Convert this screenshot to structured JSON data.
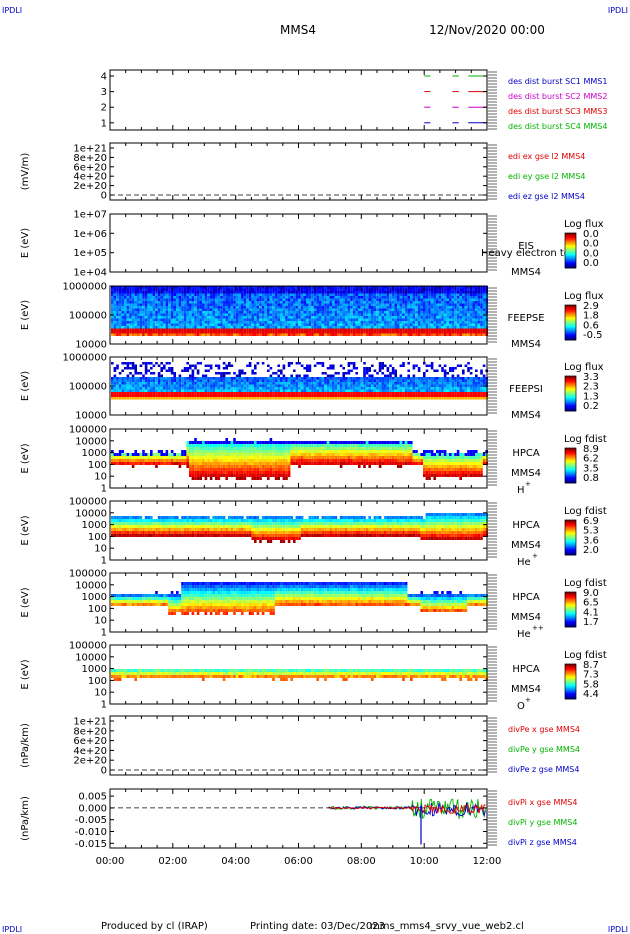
{
  "header": {
    "corner_left": "IPDLI",
    "corner_right": "IPDLI",
    "spacecraft": "MMS4",
    "date": "12/Nov/2020 00:00"
  },
  "footer": {
    "produced_by": "Produced by cl (IRAP)",
    "printing_date": "Printing date: 03/Dec/2023",
    "script_name": "mms_mms4_srvy_vue_web2.cl"
  },
  "colors": {
    "mms1": "#0000c8",
    "mms2": "#c800c8",
    "mms3": "#e00000",
    "mms4": "#00b400",
    "x_component": "#e00000",
    "y_component": "#00b400",
    "z_component": "#0000c8"
  },
  "chart_data": [
    {
      "id": "burst",
      "type": "line",
      "ylabel": "",
      "yticks": [
        "4",
        "3",
        "2",
        "1"
      ],
      "ylim": [
        0.5,
        4.5
      ],
      "legend": [
        {
          "text": "des dist burst SC1 MMS1",
          "color": "#0000c8"
        },
        {
          "text": "des dist burst SC2 MMS2",
          "color": "#c800c8"
        },
        {
          "text": "des dist burst SC3 MMS3",
          "color": "#e00000"
        },
        {
          "text": "des dist burst SC4 MMS4",
          "color": "#00b400"
        }
      ]
    },
    {
      "id": "edi",
      "type": "line",
      "ylabel": "(mV/m)",
      "yticks": [
        "1e+21",
        "8e+20",
        "6e+20",
        "4e+20",
        "2e+20",
        "0"
      ],
      "legend": [
        {
          "text": "edi ex gse l2 MMS4",
          "color": "#e00000"
        },
        {
          "text": "edi ey gse l2 MMS4",
          "color": "#00b400"
        },
        {
          "text": "edi ez gse l2 MMS4",
          "color": "#0000c8"
        }
      ]
    },
    {
      "id": "eis",
      "type": "heatmap",
      "ylabel": "E (eV)",
      "yticks": [
        "1e+07",
        "1e+06",
        "1e+05",
        "1e+04"
      ],
      "instrument": "EIS",
      "spacecraft_label": "MMS4",
      "overlay_text": "Heavy electron to",
      "colorbar_title": "Log flux",
      "colorbar_ticks": [
        "0.0",
        "0.0",
        "0.0",
        "0.0"
      ]
    },
    {
      "id": "feepse",
      "type": "heatmap",
      "ylabel": "E (eV)",
      "yticks": [
        "1000000",
        "100000",
        "10000"
      ],
      "instrument": "FEEPSE",
      "spacecraft_label": "MMS4",
      "colorbar_title": "Log flux",
      "colorbar_ticks": [
        "2.9",
        "1.8",
        "0.6",
        "-0.5"
      ]
    },
    {
      "id": "feepsi",
      "type": "heatmap",
      "ylabel": "E (eV)",
      "yticks": [
        "1000000",
        "100000",
        "10000"
      ],
      "instrument": "FEEPSI",
      "spacecraft_label": "MMS4",
      "colorbar_title": "Log flux",
      "colorbar_ticks": [
        "3.3",
        "2.3",
        "1.3",
        "0.2"
      ]
    },
    {
      "id": "hpca_h",
      "type": "heatmap",
      "ylabel": "E (eV)",
      "yticks": [
        "100000",
        "10000",
        "1000",
        "100",
        "10",
        "1"
      ],
      "instrument": "HPCA",
      "spacecraft_label": "MMS4",
      "species": "H",
      "species_charge": "+",
      "colorbar_title": "Log fdist",
      "colorbar_ticks": [
        "8.9",
        "6.2",
        "3.5",
        "0.8"
      ]
    },
    {
      "id": "hpca_he",
      "type": "heatmap",
      "ylabel": "E (eV)",
      "yticks": [
        "100000",
        "10000",
        "1000",
        "100",
        "10",
        "1"
      ],
      "instrument": "HPCA",
      "spacecraft_label": "MMS4",
      "species": "He",
      "species_charge": "+",
      "colorbar_title": "Log fdist",
      "colorbar_ticks": [
        "6.9",
        "5.3",
        "3.6",
        "2.0"
      ]
    },
    {
      "id": "hpca_hepp",
      "type": "heatmap",
      "ylabel": "E (eV)",
      "yticks": [
        "100000",
        "10000",
        "1000",
        "100",
        "10",
        "1"
      ],
      "instrument": "HPCA",
      "spacecraft_label": "MMS4",
      "species": "He",
      "species_charge": "++",
      "colorbar_title": "Log fdist",
      "colorbar_ticks": [
        "9.0",
        "6.5",
        "4.1",
        "1.7"
      ]
    },
    {
      "id": "hpca_o",
      "type": "heatmap",
      "ylabel": "E (eV)",
      "yticks": [
        "100000",
        "10000",
        "1000",
        "100",
        "10",
        "1"
      ],
      "instrument": "HPCA",
      "spacecraft_label": "MMS4",
      "species": "O",
      "species_charge": "+",
      "colorbar_title": "Log fdist",
      "colorbar_ticks": [
        "8.7",
        "7.3",
        "5.8",
        "4.4"
      ]
    },
    {
      "id": "divpe",
      "type": "line",
      "ylabel": "(nPa/km)",
      "yticks": [
        "1e+21",
        "8e+20",
        "6e+20",
        "4e+20",
        "2e+20",
        "0"
      ],
      "legend": [
        {
          "text": "divPe x gse MMS4",
          "color": "#e00000"
        },
        {
          "text": "divPe y gse MMS4",
          "color": "#00b400"
        },
        {
          "text": "divPe z gse MMS4",
          "color": "#0000c8"
        }
      ]
    },
    {
      "id": "divpi",
      "type": "line",
      "ylabel": "(nPa/km)",
      "yticks": [
        "0.005",
        "0.000",
        "-0.005",
        "-0.010",
        "-0.015"
      ],
      "ylim": [
        -0.017,
        0.008
      ],
      "legend": [
        {
          "text": "divPi x gse MMS4",
          "color": "#e00000"
        },
        {
          "text": "divPi y gse MMS4",
          "color": "#00b400"
        },
        {
          "text": "divPi z gse MMS4",
          "color": "#0000c8"
        }
      ],
      "xticks": [
        "00:00",
        "02:00",
        "04:00",
        "06:00",
        "08:00",
        "10:00",
        "12:00"
      ],
      "xlim_hours": [
        0,
        12
      ]
    }
  ]
}
